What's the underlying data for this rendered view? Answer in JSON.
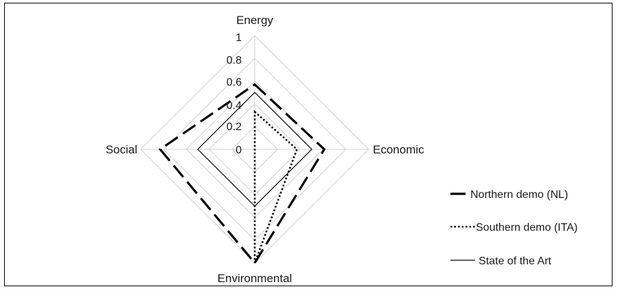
{
  "chart_data": {
    "type": "radar",
    "axes": [
      "Energy",
      "Economic",
      "Environmental",
      "Social"
    ],
    "radial_ticks": [
      "0",
      "0.2",
      "0.4",
      "0.6",
      "0.8",
      "1"
    ],
    "rlim": [
      0,
      1
    ],
    "grid": true,
    "legend_position": "right",
    "series": [
      {
        "name": "Northern demo (NL)",
        "values": [
          0.57,
          0.61,
          1.0,
          0.83
        ],
        "style": "long-dash",
        "color": "#000000"
      },
      {
        "name": "Southern demo (ITA)",
        "values": [
          0.33,
          0.37,
          1.0,
          0.0
        ],
        "style": "dotted",
        "color": "#000000"
      },
      {
        "name": "State of the Art",
        "values": [
          0.5,
          0.5,
          0.5,
          0.5
        ],
        "style": "solid",
        "color": "#000000"
      }
    ]
  }
}
